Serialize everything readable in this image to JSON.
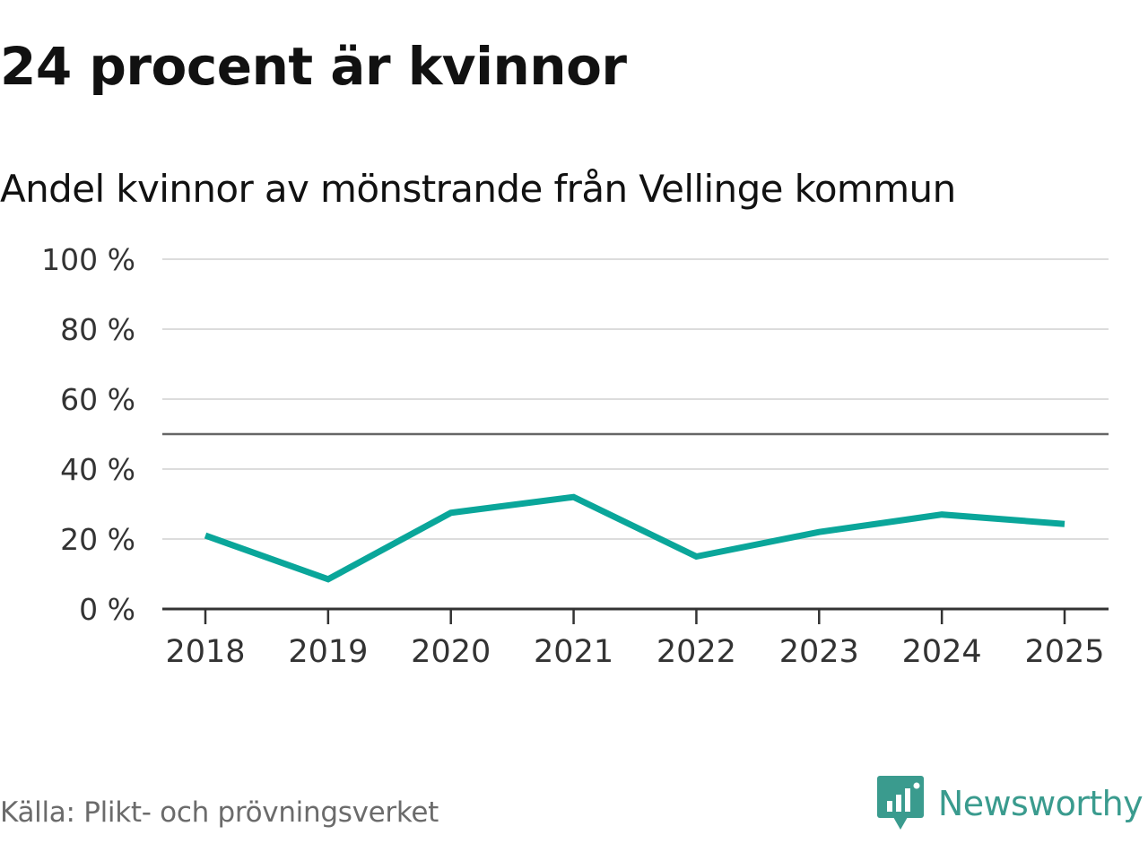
{
  "title": "24 procent är kvinnor",
  "subtitle": "Andel kvinnor av mönstrande från Vellinge kommun",
  "source": "Källa: Plikt- och prövningsverket",
  "brand": {
    "name": "Newsworthy",
    "logo_icon": "newsworthy-bar-chart-icon",
    "color": "#3a9b8e"
  },
  "chart_data": {
    "type": "line",
    "x": [
      "2018",
      "2019",
      "2020",
      "2021",
      "2022",
      "2023",
      "2024",
      "2025"
    ],
    "series": [
      {
        "values": [
          21,
          8.5,
          27.5,
          32,
          15,
          22,
          27,
          24.3
        ],
        "color": "#0aa69a"
      }
    ],
    "ylim": [
      0,
      100
    ],
    "yticks": [
      0,
      20,
      40,
      60,
      80,
      100
    ],
    "ytick_labels": [
      "0 %",
      "20 %",
      "40 %",
      "60 %",
      "80 %",
      "100 %"
    ],
    "reference_line": 50,
    "grid": true,
    "xlabel": "",
    "ylabel": ""
  }
}
